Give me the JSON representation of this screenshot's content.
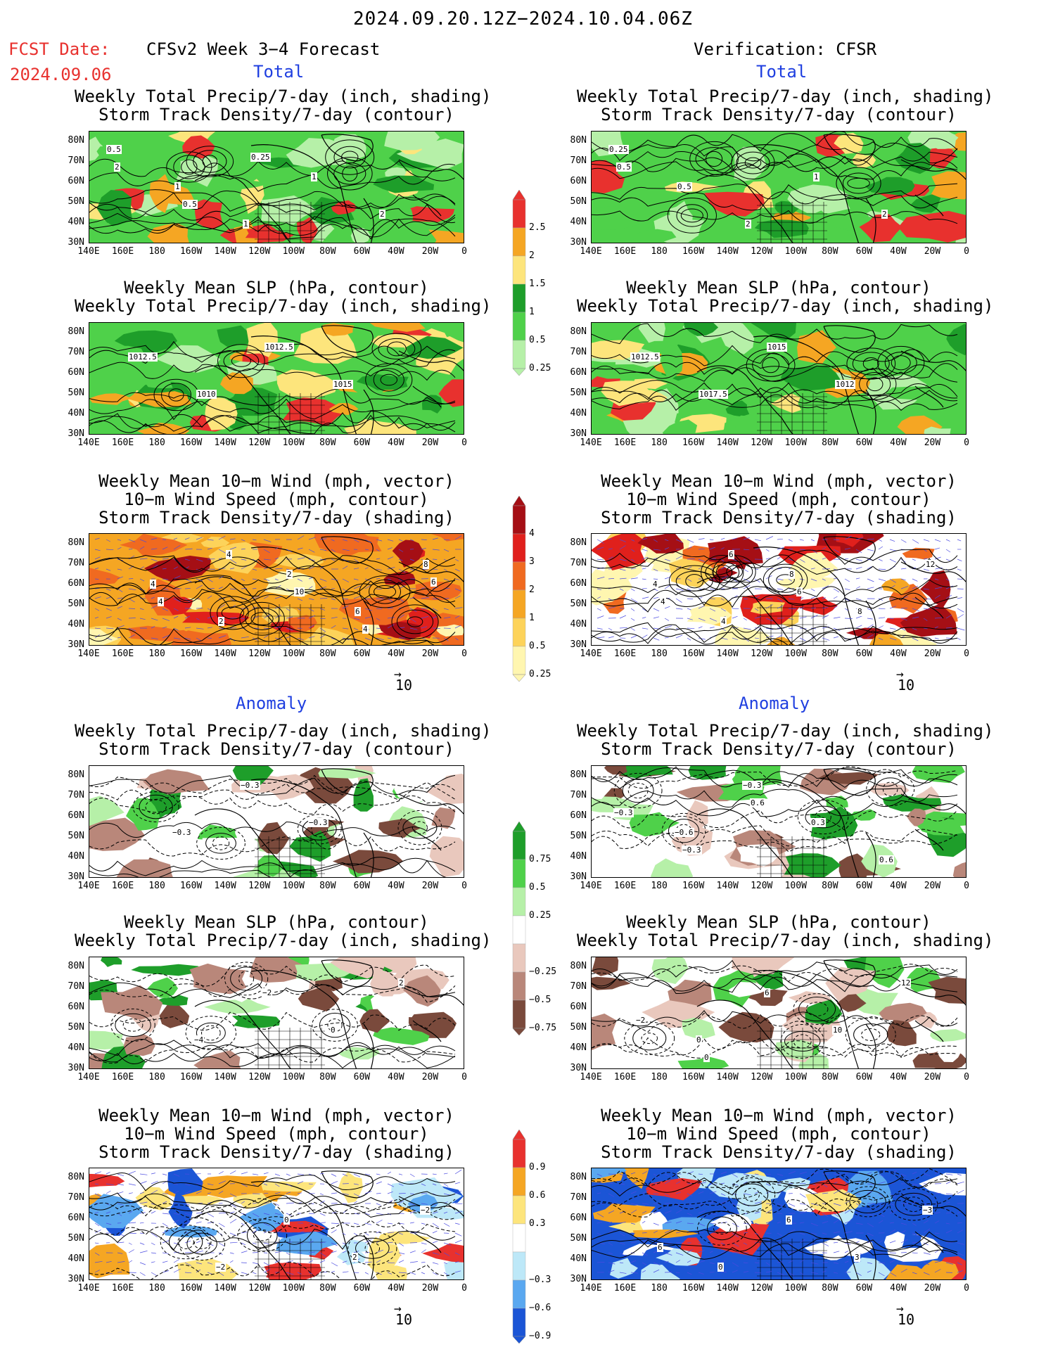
{
  "header": {
    "date_range": "2024.09.20.12Z−2024.10.04.06Z",
    "fcst_label": "FCST Date:",
    "fcst_date": "2024.09.06",
    "left_title": "CFSv2 Week 3−4 Forecast",
    "right_title": "Verification: CFSR"
  },
  "sections": {
    "total": "Total",
    "anomaly": "Anomaly"
  },
  "panel_titles": {
    "precip_storm": [
      "Weekly Total Precip/7-day (inch, shading)",
      "Storm Track Density/7-day (contour)"
    ],
    "slp_precip": [
      "Weekly Mean SLP (hPa, contour)",
      "Weekly Total Precip/7-day (inch, shading)"
    ],
    "wind": [
      "Weekly Mean 10−m Wind (mph, vector)",
      "10−m Wind Speed (mph, contour)",
      "Storm Track Density/7-day (shading)"
    ]
  },
  "axes": {
    "lat_labels": [
      "80N",
      "70N",
      "60N",
      "50N",
      "40N",
      "30N"
    ],
    "lon_labels": [
      "140E",
      "160E",
      "180",
      "160W",
      "140W",
      "120W",
      "100W",
      "80W",
      "60W",
      "40W",
      "20W",
      "0"
    ]
  },
  "vector_ref": "10",
  "colorbars": {
    "total_precip": {
      "labels": [
        "2.5",
        "2",
        "1.5",
        "1",
        "0.5",
        "0.25"
      ],
      "colors": [
        "#e8312e",
        "#f5a623",
        "#fde57c",
        "#1e9e2a",
        "#4fd14a",
        "#b6f0a8"
      ]
    },
    "total_storm": {
      "labels": [
        "4",
        "3",
        "2",
        "1",
        "0.5",
        "0.25"
      ],
      "colors": [
        "#a50f15",
        "#e0201c",
        "#f06a20",
        "#f5a623",
        "#fdd35a",
        "#fff6b0"
      ]
    },
    "anom_precip": {
      "labels": [
        "0.75",
        "0.5",
        "0.25",
        "−0.25",
        "−0.5",
        "−0.75"
      ],
      "colors": [
        "#1e9e2a",
        "#4fd14a",
        "#b6f0a8",
        "#ffffff",
        "#e9c8bd",
        "#b9877a",
        "#7a4a3c"
      ]
    },
    "anom_storm": {
      "labels": [
        "0.9",
        "0.6",
        "0.3",
        "−0.3",
        "−0.6",
        "−0.9"
      ],
      "colors": [
        "#e8312e",
        "#f5a623",
        "#fde57c",
        "#ffffff",
        "#bde8f8",
        "#5aa8f0",
        "#1b55d6"
      ]
    }
  },
  "contour_labels": {
    "L1": [
      "0.5",
      "1",
      "1",
      "1",
      "2",
      "2",
      "0.5",
      "0.25"
    ],
    "R1": [
      "0.25",
      "0.5",
      "2",
      "1",
      "2",
      "0.5"
    ],
    "L2": [
      "1012.5",
      "1010",
      "1012.5",
      "1015"
    ],
    "R2": [
      "1012.5",
      "1017.5",
      "1015",
      "1012"
    ],
    "L3": [
      "4",
      "2",
      "2",
      "6",
      "8",
      "4",
      "4",
      "10",
      "4",
      "6"
    ],
    "R3": [
      "4",
      "4",
      "8",
      "8",
      "12",
      "4",
      "6",
      "6"
    ],
    "L4": [
      "−0.3",
      "−0.3",
      "−0.3"
    ],
    "R4": [
      "−0.6",
      "−0.3",
      "0.3",
      "0.6",
      "−0.3",
      "−0.3",
      "0.6"
    ],
    "L5": [
      "−4",
      "−2",
      "0",
      "2"
    ],
    "R5": [
      "0",
      "6",
      "10",
      "12",
      "−2",
      "0"
    ],
    "L6": [
      "−2",
      "0",
      "2",
      "−2"
    ],
    "R6": [
      "0",
      "6",
      "3",
      "−3",
      "6"
    ]
  }
}
